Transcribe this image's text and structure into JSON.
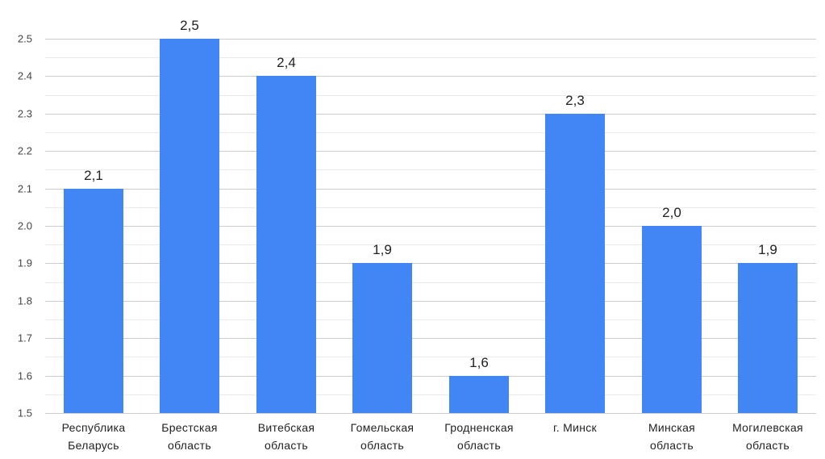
{
  "chart_data": {
    "type": "bar",
    "title": "",
    "xlabel": "",
    "ylabel": "",
    "categories": [
      [
        "Республика",
        "Беларусь"
      ],
      [
        "Брестская",
        "область"
      ],
      [
        "Витебская",
        "область"
      ],
      [
        "Гомельская",
        "область"
      ],
      [
        "Гродненская",
        "область"
      ],
      [
        "г. Минск",
        ""
      ],
      [
        "Минская",
        "область"
      ],
      [
        "Могилевская",
        "область"
      ]
    ],
    "values": [
      2.1,
      2.5,
      2.4,
      1.9,
      1.6,
      2.3,
      2.0,
      1.9
    ],
    "value_labels": [
      "2,1",
      "2,5",
      "2,4",
      "1,9",
      "1,6",
      "2,3",
      "2,0",
      "1,9"
    ],
    "ylim": [
      1.5,
      2.5
    ],
    "yticks": [
      "2.5",
      "2.4",
      "2.3",
      "2.2",
      "2.1",
      "2.0",
      "1.9",
      "1.8",
      "1.7",
      "1.6",
      "1.5"
    ],
    "grid": true,
    "legend": "none",
    "bar_color": "#4285f4"
  }
}
